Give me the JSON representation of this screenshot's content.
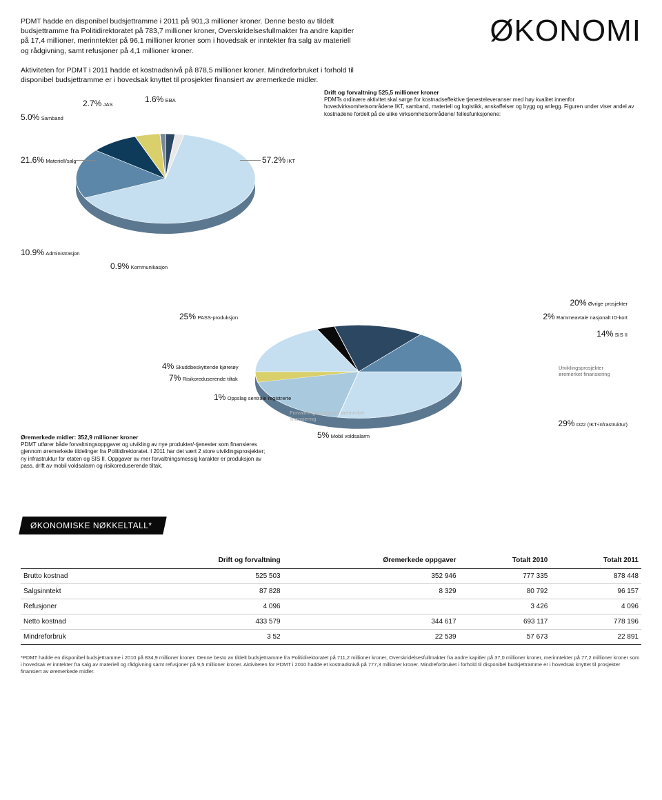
{
  "intro_p1": "PDMT hadde en disponibel budsjettramme i 2011 på 901,3 millioner kroner. Denne besto av tildelt budsjettramme fra Politidirektoratet på 783,7 millioner kroner, Overskridelsesfullmakter fra andre kapitler på 17,4 millioner, merinntekter på 96,1 millioner kroner som i hovedsak er inntekter fra salg av materiell og rådgivning, samt refusjoner på 4,1 millioner kroner.",
  "title": "ØKONOMI",
  "intro_p2": "Aktiviteten for PDMT i 2011 hadde et kostnadsnivå på 878,5 millioner kroner. Mindreforbruket i forhold til disponibel budsjettramme er i hovedsak knyttet til prosjekter finansiert av øremerkede midler.",
  "right1_hdr": "Drift og forvaltning 525,5 millioner kroner",
  "right1_body": "PDMTs ordinære aktivitet skal sørge for kostnadseffektive tjenesteleveranser med høy kvalitet innenfor hovedvirksomhetsområdene IKT, samband, materiell og logistikk, anskaffelser og bygg og anlegg. Figuren under viser andel av kostnadene fordelt på de ulike virksomhetsområdene/ fellesfunksjonene:",
  "chart1": {
    "colors": {
      "ikt": "#c5dff0",
      "materiell": "#5c87a8",
      "admin": "#0f3b5a",
      "samband": "#d9cf6b",
      "jas": "#2c4762",
      "eba": "#e8e8e8",
      "kom": "#7a8896"
    },
    "slices": [
      {
        "pct": "57.2%",
        "name": "IKT"
      },
      {
        "pct": "21.6%",
        "name": "Materiell/salg"
      },
      {
        "pct": "10.9%",
        "name": "Administrasjon"
      },
      {
        "pct": "5.0%",
        "name": "Samband"
      },
      {
        "pct": "2.7%",
        "name": "JAS"
      },
      {
        "pct": "1.6%",
        "name": "EBA"
      },
      {
        "pct": "0.9%",
        "name": "Kommunikasjon"
      }
    ]
  },
  "chart2": {
    "slices": [
      {
        "pct": "29%",
        "name": "D#2 (IKT-infrastruktur)"
      },
      {
        "pct": "25%",
        "name": "PASS-produksjon"
      },
      {
        "pct": "20%",
        "name": "Øvrige prosjekter"
      },
      {
        "pct": "14%",
        "name": "SIS II"
      },
      {
        "pct": "7%",
        "name": "Risikoreduserende tiltak"
      },
      {
        "pct": "5%",
        "name": "Mobil voldsalarm"
      },
      {
        "pct": "4%",
        "name": "Skuddbeskyttende kjøretøy"
      },
      {
        "pct": "2%",
        "name": "Rammeavtale nasjonalt ID-kort"
      },
      {
        "pct": "1%",
        "name": "Oppslag sentrale registrerte"
      }
    ],
    "caption_right": "Utviklingsprosjekter øremerket finansiering",
    "caption_center": "Forvaltningsoppgaver øremerket finansiering"
  },
  "bottom_left_hdr": "Øremerkede midler: 352,9 millioner kroner",
  "bottom_left_body": "PDMT utfører både forvaltningsoppgaver og utvikling av nye produkter/-tjenester som finansieres gjennom øremerkede tildelinger fra Politidirektoratet. I 2011 har det vært 2 store utviklingsprosjekter; ny infrastruktur for etaten og SIS II. Oppgaver av mer forvaltningsmessig karakter er produksjon av pass, drift av mobil voldsalarm og risiko­reduserende tiltak.",
  "table_title": "ØKONOMISKE NØKKELTALL*",
  "table": {
    "columns": [
      "",
      "Drift og forvaltning",
      "Øremerkede oppgaver",
      "Totalt 2010",
      "Totalt 2011"
    ],
    "rows": [
      [
        "Brutto kostnad",
        "525 503",
        "352 946",
        "777 335",
        "878 448"
      ],
      [
        "Salgsinntekt",
        "87 828",
        "8 329",
        "80 792",
        "96 157"
      ],
      [
        "Refusjoner",
        "4 096",
        "",
        "3 426",
        "4 096"
      ],
      [
        "Netto kostnad",
        "433 579",
        "344 617",
        "693 117",
        "778 196"
      ],
      [
        "Mindreforbruk",
        "3 52",
        "22 539",
        "57 673",
        "22 891"
      ]
    ]
  },
  "footnote": "*PDMT hadde en disponibel budsjettramme i 2010 på 834,9 millioner kroner. Denne besto av tildelt budsjettramme fra Politidirektoratet på 711,2 millioner kroner, Overskridelsesfullmakter fra andre kapitler på 37,0 millioner kroner, merinntekter på 77,2 millioner kroner som i hovedsak er inntekter fra salg av materiell og rådgivning samt refusjoner på 9,5 millioner kroner. Aktiviteten for PDMT i 2010 hadde et kostnadsnivå på 777,3 millioner kroner. Mindreforbruket i forhold til disponibel budsjettramme er i hovedsak knyttet til prosjekter finansiert av øremerkede midler."
}
